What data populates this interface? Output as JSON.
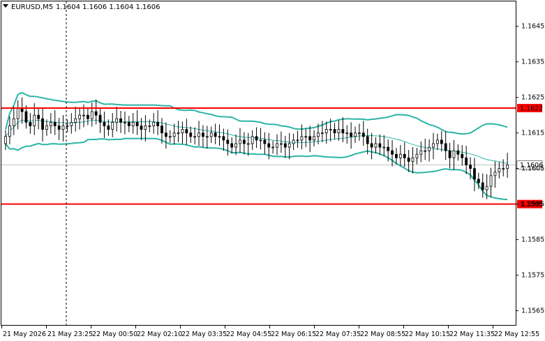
{
  "header": {
    "symbol": "EURUSD,M5",
    "ohlc": "1.1604 1.1606 1.1604 1.1606",
    "menu_icon": "triangle-down-icon"
  },
  "colors": {
    "candle": "#000000",
    "bands": "#2ab5a5",
    "ma": "#2ab5a5",
    "hline": "#ff0000",
    "label_bg": "#ff0000",
    "current_bg": "#ffffff",
    "grid": "#c0c0c0",
    "crosshair": "#000000"
  },
  "chart_data": {
    "type": "candlestick",
    "symbol": "EURUSD",
    "timeframe": "M5",
    "ylim": [
      1.1561,
      1.1652
    ],
    "y_ticks": [
      "1.1645",
      "1.1635",
      "1.1625",
      "1.1615",
      "1.1605",
      "1.1595",
      "1.1585",
      "1.1575",
      "1.1565"
    ],
    "x_ticks": [
      "21 May 2026",
      "21 May 23:25",
      "22 May 00:50",
      "22 May 02:10",
      "22 May 03:35",
      "22 May 04:55",
      "22 May 06:15",
      "22 May 07:35",
      "22 May 08:55",
      "22 May 10:15",
      "22 May 11:35",
      "22 May 12:55"
    ],
    "horizontal_lines": [
      {
        "price": 1.1622,
        "label": "1.1622"
      },
      {
        "price": 1.1595,
        "label": "1.1595"
      }
    ],
    "current_price": {
      "price": 1.1606,
      "label": "1.1606"
    },
    "crosshair_x_label": "21 May 23:25",
    "close": [
      1.1614,
      1.1617,
      1.1619,
      1.1622,
      1.1621,
      1.1618,
      1.1617,
      1.162,
      1.1619,
      1.1616,
      1.1617,
      1.1618,
      1.1617,
      1.1616,
      1.1617,
      1.1617,
      1.1618,
      1.1619,
      1.162,
      1.162,
      1.1619,
      1.1621,
      1.162,
      1.1618,
      1.1617,
      1.1616,
      1.1618,
      1.1619,
      1.1618,
      1.1618,
      1.1617,
      1.1618,
      1.1617,
      1.1616,
      1.1617,
      1.1617,
      1.1618,
      1.1617,
      1.1615,
      1.1614,
      1.1614,
      1.1615,
      1.1615,
      1.1616,
      1.1615,
      1.1614,
      1.1614,
      1.1615,
      1.1614,
      1.1614,
      1.1615,
      1.1614,
      1.1614,
      1.1613,
      1.1612,
      1.1611,
      1.1612,
      1.1613,
      1.1612,
      1.1612,
      1.1614,
      1.1613,
      1.1613,
      1.1612,
      1.1611,
      1.1611,
      1.1612,
      1.1612,
      1.1611,
      1.1612,
      1.1613,
      1.1613,
      1.1614,
      1.1614,
      1.1613,
      1.1614,
      1.1615,
      1.1615,
      1.1616,
      1.1616,
      1.1615,
      1.1616,
      1.1615,
      1.1615,
      1.1614,
      1.1615,
      1.1615,
      1.1614,
      1.1612,
      1.1611,
      1.1612,
      1.1611,
      1.1611,
      1.161,
      1.1609,
      1.1608,
      1.1609,
      1.1608,
      1.1607,
      1.1608,
      1.1609,
      1.161,
      1.161,
      1.1611,
      1.1612,
      1.1613,
      1.1612,
      1.161,
      1.1608,
      1.161,
      1.1609,
      1.1608,
      1.1606,
      1.1605,
      1.1602,
      1.1601,
      1.1599,
      1.16,
      1.1603,
      1.1604,
      1.1605,
      1.1605,
      1.1606
    ]
  }
}
